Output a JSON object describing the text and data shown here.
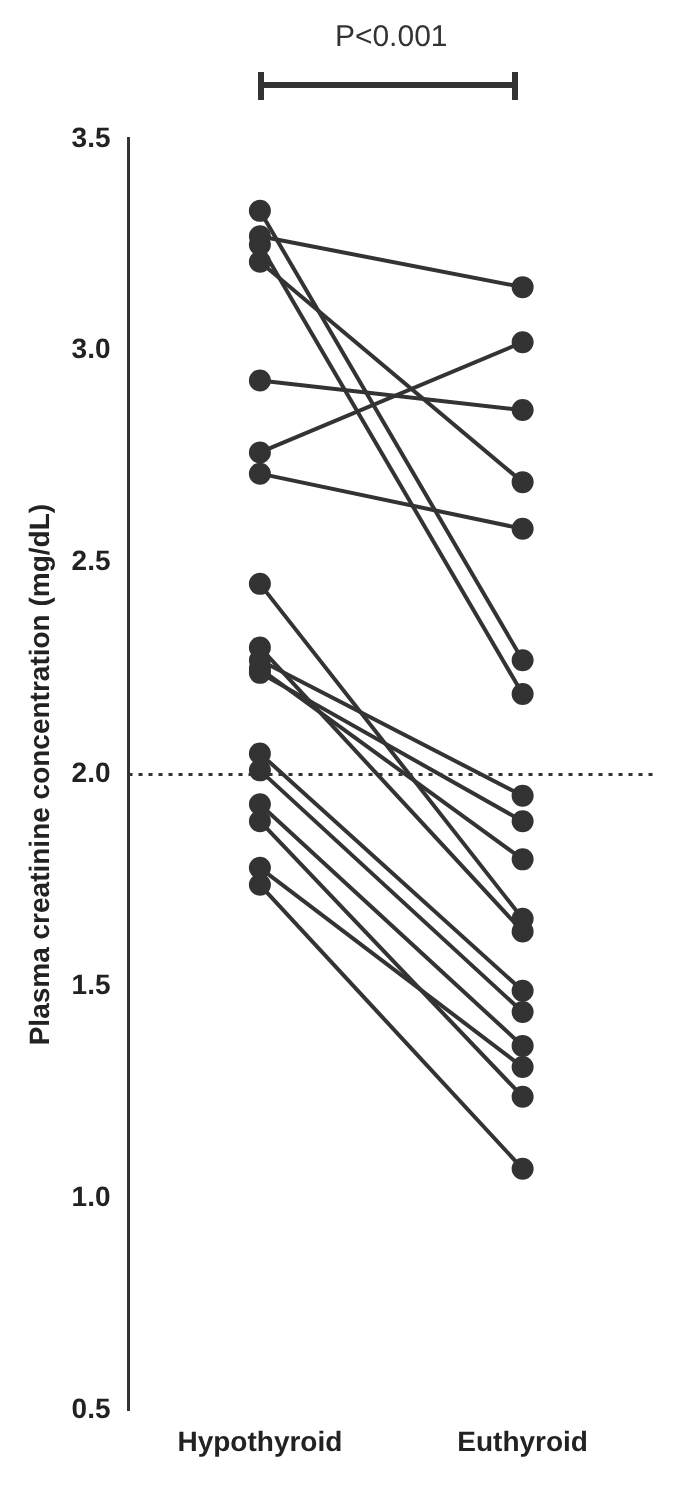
{
  "chart_data": {
    "type": "line",
    "ylabel": "Plasma creatinine concentration (mg/dL)",
    "categories": [
      "Hypothyroid",
      "Euthyroid"
    ],
    "series": [
      {
        "color": "#333333",
        "values": [
          3.27,
          3.15
        ]
      },
      {
        "color": "#333333",
        "values": [
          3.33,
          2.27
        ]
      },
      {
        "color": "#333333",
        "values": [
          3.25,
          2.19
        ]
      },
      {
        "color": "#333333",
        "values": [
          3.21,
          2.69
        ]
      },
      {
        "color": "#333333",
        "values": [
          2.93,
          2.86
        ]
      },
      {
        "color": "#333333",
        "values": [
          2.76,
          3.02
        ]
      },
      {
        "color": "#333333",
        "values": [
          2.71,
          2.58
        ]
      },
      {
        "color": "#333333",
        "values": [
          2.45,
          1.66
        ]
      },
      {
        "color": "#333333",
        "values": [
          2.3,
          1.63
        ]
      },
      {
        "color": "#333333",
        "values": [
          2.27,
          1.95
        ]
      },
      {
        "color": "#333333",
        "values": [
          2.24,
          1.89
        ]
      },
      {
        "color": "#333333",
        "values": [
          2.25,
          1.8
        ]
      },
      {
        "color": "#333333",
        "values": [
          2.05,
          1.49
        ]
      },
      {
        "color": "#333333",
        "values": [
          2.01,
          1.44
        ]
      },
      {
        "color": "#333333",
        "values": [
          1.93,
          1.36
        ]
      },
      {
        "color": "#333333",
        "values": [
          1.89,
          1.24
        ]
      },
      {
        "color": "#333333",
        "values": [
          1.78,
          1.31
        ]
      },
      {
        "color": "#333333",
        "values": [
          1.74,
          1.07
        ]
      }
    ],
    "ylim": [
      0.5,
      3.5
    ],
    "yticks": [
      {
        "value": 0.5,
        "label": "0.5"
      },
      {
        "value": 1,
        "label": "1.0"
      },
      {
        "value": 1.5,
        "label": "1.5"
      },
      {
        "value": 2,
        "label": "2.0"
      },
      {
        "value": 2.5,
        "label": "2.5"
      },
      {
        "value": 3,
        "label": "3.0"
      },
      {
        "value": 3.5,
        "label": "3.5"
      }
    ],
    "ref_lines": [
      {
        "axis": "y",
        "value": 2,
        "color": "#333333",
        "line_style": "dotted"
      }
    ],
    "annotations": [
      "P<0.001"
    ],
    "grid": false,
    "legend": false,
    "marker": "circle",
    "line_style": "solid"
  }
}
